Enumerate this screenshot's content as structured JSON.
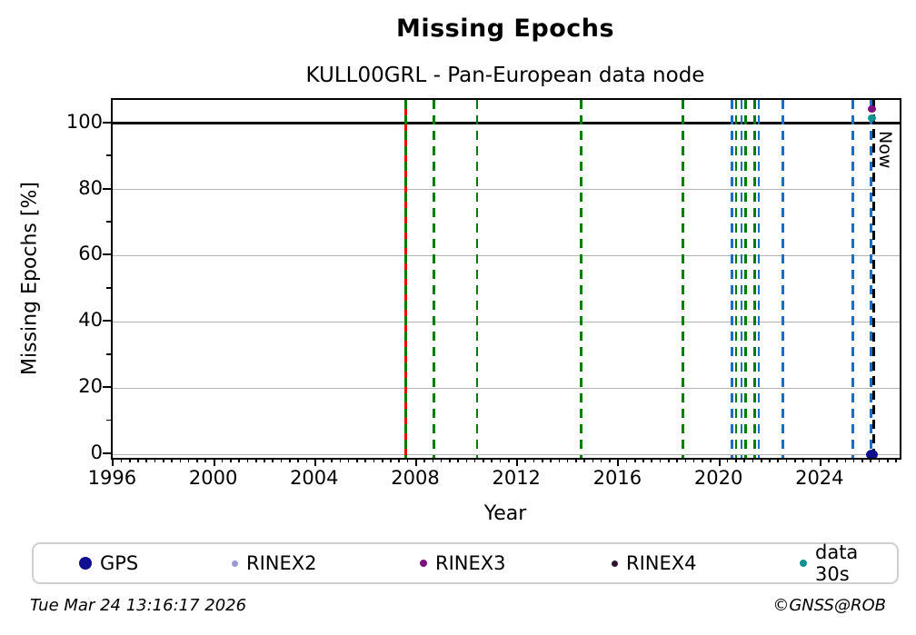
{
  "chart_data": {
    "type": "scatter",
    "title": "Missing Epochs",
    "subtitle": "KULL00GRL - Pan-European data node",
    "xlabel": "Year",
    "ylabel": "Missing Epochs [%]",
    "xlim": [
      1995.95,
      2027.1
    ],
    "ylim": [
      -1,
      107
    ],
    "x_major_ticks": [
      1996,
      2000,
      2004,
      2008,
      2012,
      2016,
      2020,
      2024
    ],
    "x_minor_step_years": 0.33333,
    "y_major_ticks": [
      0,
      20,
      40,
      60,
      80,
      100
    ],
    "y_minor_step": 10,
    "y_gridlines": [
      0,
      20,
      40,
      60,
      80
    ],
    "grid_on": true,
    "full_line_y": 100,
    "now": {
      "year": 2026.06,
      "label": "Now",
      "color": "#000000",
      "style": "dashed"
    },
    "event_vlines": [
      {
        "year": 2007.55,
        "color": "#ff0000",
        "style": "solid"
      },
      {
        "year": 2007.55,
        "color": "#007d00",
        "style": "dashed"
      },
      {
        "year": 2008.66,
        "color": "#007d00",
        "style": "dashed"
      },
      {
        "year": 2010.38,
        "color": "#007d00",
        "style": "dashed"
      },
      {
        "year": 2014.49,
        "color": "#007d00",
        "style": "dashed"
      },
      {
        "year": 2018.52,
        "color": "#007d00",
        "style": "dashed"
      },
      {
        "year": 2020.46,
        "color": "#1a6fc4",
        "style": "dashed"
      },
      {
        "year": 2020.62,
        "color": "#007d00",
        "style": "dashed"
      },
      {
        "year": 2020.84,
        "color": "#1a6fc4",
        "style": "dashed"
      },
      {
        "year": 2021.0,
        "color": "#007d00",
        "style": "dashed"
      },
      {
        "year": 2021.36,
        "color": "#007d00",
        "style": "dashed"
      },
      {
        "year": 2021.52,
        "color": "#1a6fc4",
        "style": "dashed"
      },
      {
        "year": 2022.48,
        "color": "#1a6fc4",
        "style": "dashed"
      },
      {
        "year": 2025.25,
        "color": "#1a6fc4",
        "style": "dashed"
      },
      {
        "year": 2025.97,
        "color": "#1a6fc4",
        "style": "dashed"
      }
    ],
    "points": [
      {
        "series": "RINEX3",
        "x": 2026.0,
        "y": 104.2,
        "color": "#7e127c",
        "size": 9
      },
      {
        "series": "data 30s",
        "x": 2026.0,
        "y": 101.5,
        "color": "#149190",
        "size": 9.5
      },
      {
        "series": "GPS",
        "x": 2026.0,
        "y": 0,
        "color": "#10108e",
        "size": 13
      }
    ],
    "legend": {
      "position": "bottom",
      "items": [
        {
          "label": "GPS",
          "color": "#10108e",
          "dot_size": 14,
          "x": 50
        },
        {
          "label": "RINEX2",
          "color": "#9a99d6",
          "dot_size": 7,
          "x": 218
        },
        {
          "label": "RINEX3",
          "color": "#7e127c",
          "dot_size": 8,
          "x": 425
        },
        {
          "label": "RINEX4",
          "color": "#321232",
          "dot_size": 7,
          "x": 636
        },
        {
          "label": "data 30s",
          "color": "#149190",
          "dot_size": 8,
          "x": 843
        }
      ]
    }
  },
  "footer": {
    "timestamp": "Tue Mar 24 13:16:17 2026",
    "credit": "©GNSS@ROB"
  }
}
